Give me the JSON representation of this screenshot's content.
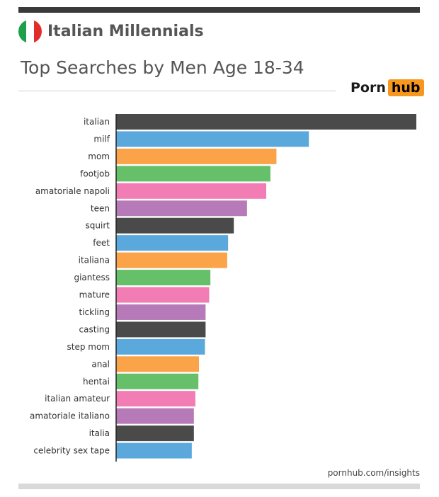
{
  "header": {
    "title": "Italian Millennials",
    "subtitle": "Top Searches by Men Age 18-34",
    "flag_colors": [
      "#1e9f4a",
      "#ffffff",
      "#e22b2b"
    ]
  },
  "logo": {
    "left": "Porn",
    "right": "hub",
    "accent": "#f7971d"
  },
  "footer": {
    "link": "pornhub.com/insights"
  },
  "chart_data": {
    "type": "bar",
    "orientation": "horizontal",
    "title": "",
    "xlabel": "",
    "ylabel": "",
    "xlim": [
      0,
      100
    ],
    "grid": false,
    "legend": "none",
    "categories": [
      "italian",
      "milf",
      "mom",
      "footjob",
      "amatoriale napoli",
      "teen",
      "squirt",
      "feet",
      "italiana",
      "giantess",
      "mature",
      "tickling",
      "casting",
      "step mom",
      "anal",
      "hentai",
      "italian amateur",
      "amatoriale italiano",
      "italia",
      "celebrity sex tape"
    ],
    "values": [
      100,
      64.2,
      53.4,
      51.4,
      50.0,
      43.6,
      39.2,
      37.3,
      37.0,
      31.4,
      31.0,
      29.8,
      29.8,
      29.6,
      27.6,
      27.4,
      26.4,
      25.9,
      25.9,
      25.2
    ],
    "colors": [
      "#4a4a4a",
      "#5ba8dc",
      "#fba348",
      "#66c069",
      "#f27db5",
      "#b77ab8"
    ]
  }
}
